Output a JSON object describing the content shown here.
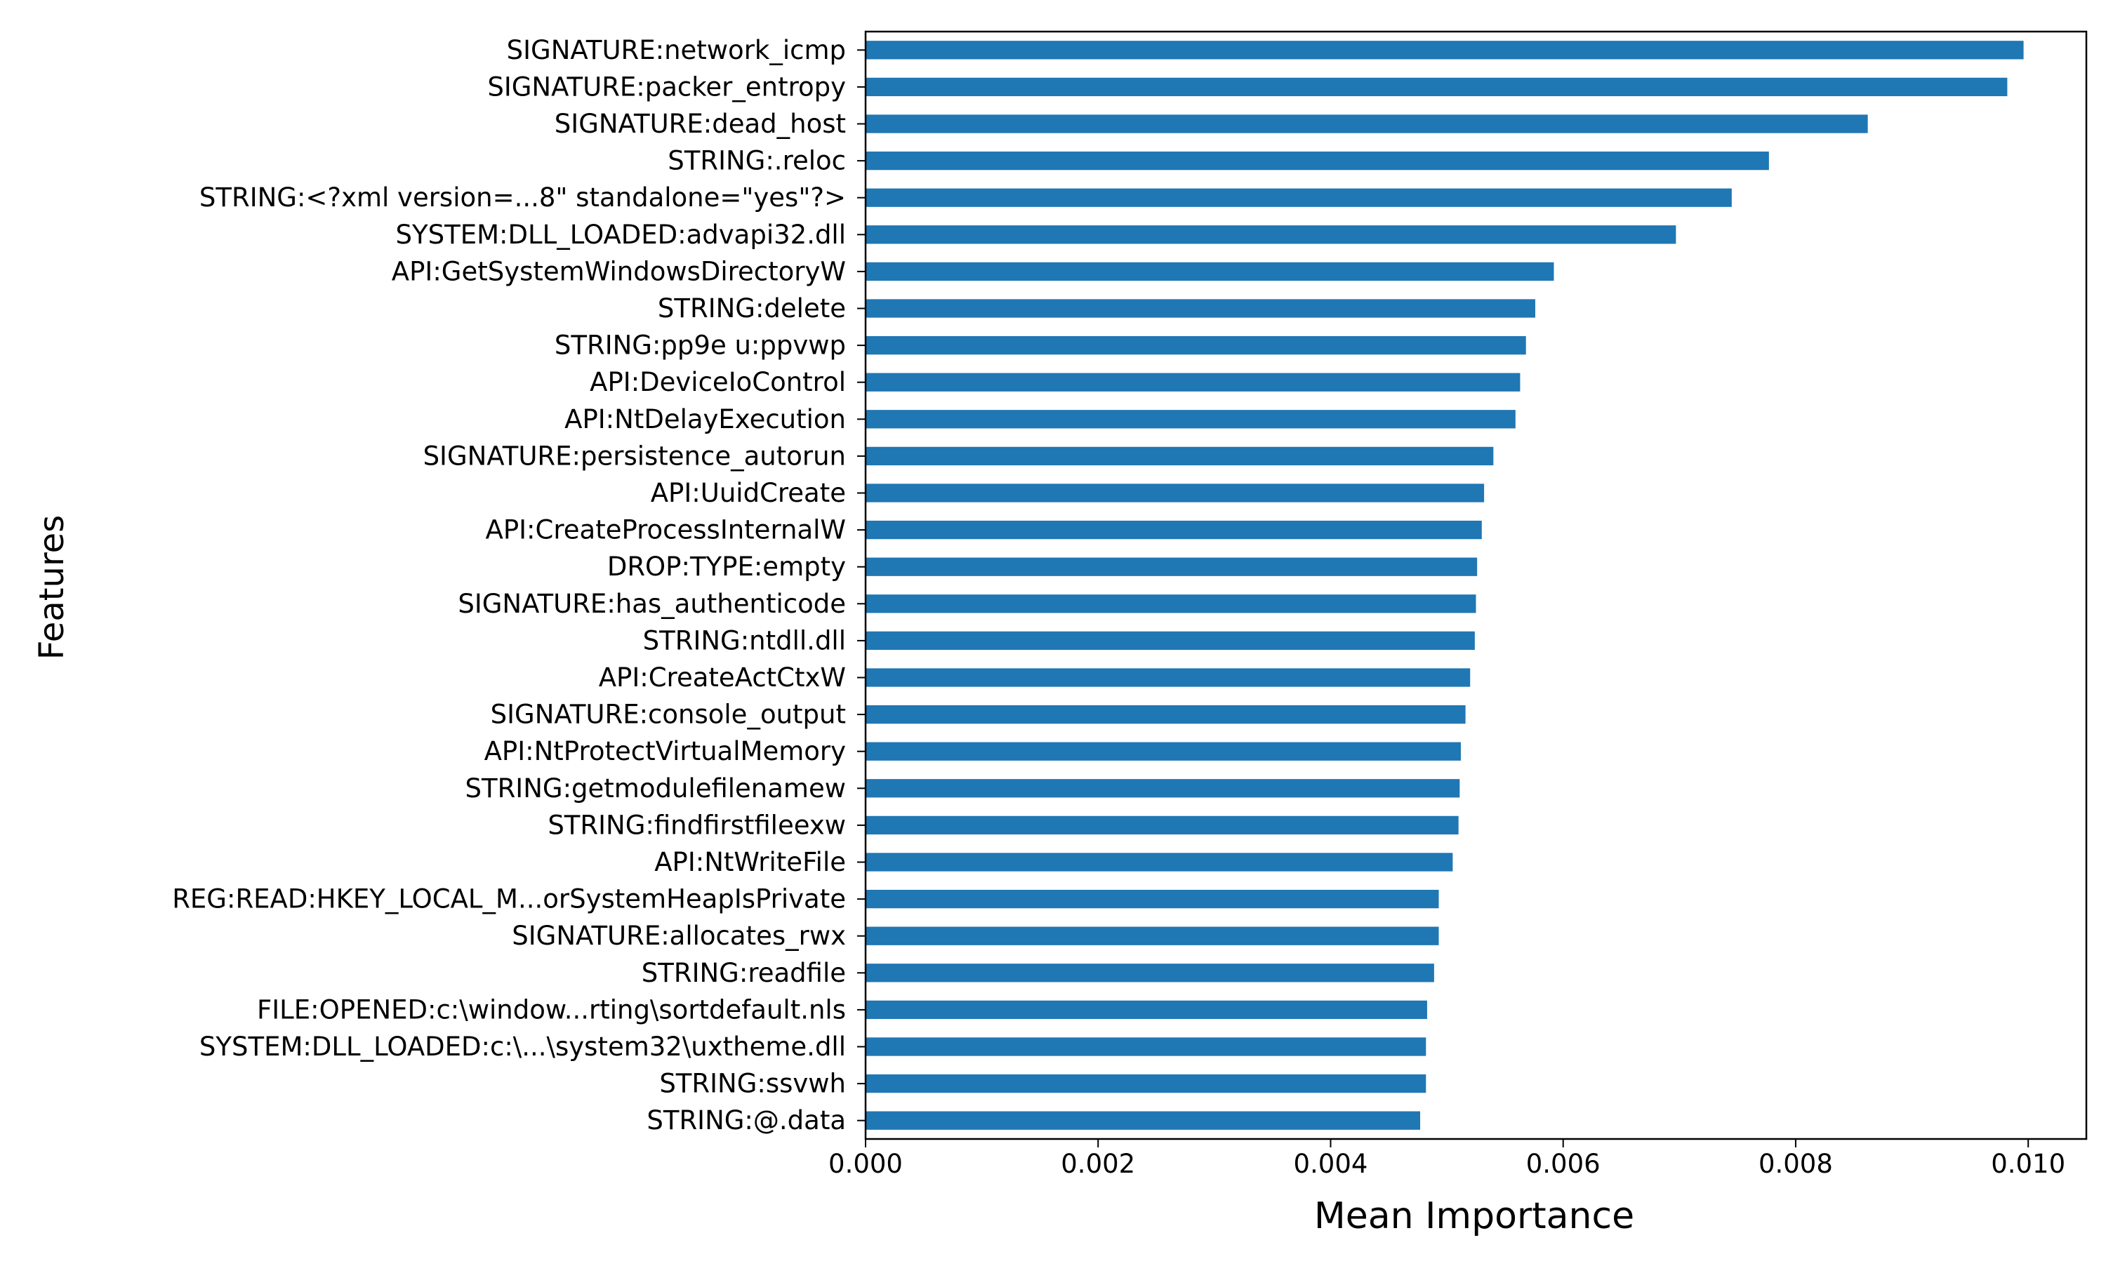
{
  "chart_data": {
    "type": "bar",
    "orientation": "horizontal",
    "title": "",
    "xlabel": "Mean Importance",
    "ylabel": "Features",
    "xlim": [
      0,
      0.0105
    ],
    "xticks": [
      0.0,
      0.002,
      0.004,
      0.006,
      0.008,
      0.01
    ],
    "xtick_labels": [
      "0.000",
      "0.002",
      "0.004",
      "0.006",
      "0.008",
      "0.010"
    ],
    "grid": false,
    "bar_color": "#1f77b4",
    "categories": [
      "SIGNATURE:network_icmp",
      "SIGNATURE:packer_entropy",
      "SIGNATURE:dead_host",
      "STRING:.reloc",
      "STRING:<?xml version=...8\" standalone=\"yes\"?>",
      "SYSTEM:DLL_LOADED:advapi32.dll",
      "API:GetSystemWindowsDirectoryW",
      "STRING:delete",
      "STRING:pp9e u:ppvwp",
      "API:DeviceIoControl",
      "API:NtDelayExecution",
      "SIGNATURE:persistence_autorun",
      "API:UuidCreate",
      "API:CreateProcessInternalW",
      "DROP:TYPE:empty",
      "SIGNATURE:has_authenticode",
      "STRING:ntdll.dll",
      "API:CreateActCtxW",
      "SIGNATURE:console_output",
      "API:NtProtectVirtualMemory",
      "STRING:getmodulefilenamew",
      "STRING:findfirstfileexw",
      "API:NtWriteFile",
      "REG:READ:HKEY_LOCAL_M...orSystemHeapIsPrivate",
      "SIGNATURE:allocates_rwx",
      "STRING:readfile",
      "FILE:OPENED:c:\\window...rting\\sortdefault.nls",
      "SYSTEM:DLL_LOADED:c:\\...\\system32\\uxtheme.dll",
      "STRING:ssvwh ",
      "STRING:@.data"
    ],
    "values": [
      0.00996,
      0.00982,
      0.00862,
      0.00777,
      0.00745,
      0.00697,
      0.00592,
      0.00576,
      0.00568,
      0.00563,
      0.00559,
      0.0054,
      0.00532,
      0.0053,
      0.00526,
      0.00525,
      0.00524,
      0.0052,
      0.00516,
      0.00512,
      0.00511,
      0.0051,
      0.00505,
      0.00493,
      0.00493,
      0.00489,
      0.00483,
      0.00482,
      0.00482,
      0.00477
    ]
  }
}
